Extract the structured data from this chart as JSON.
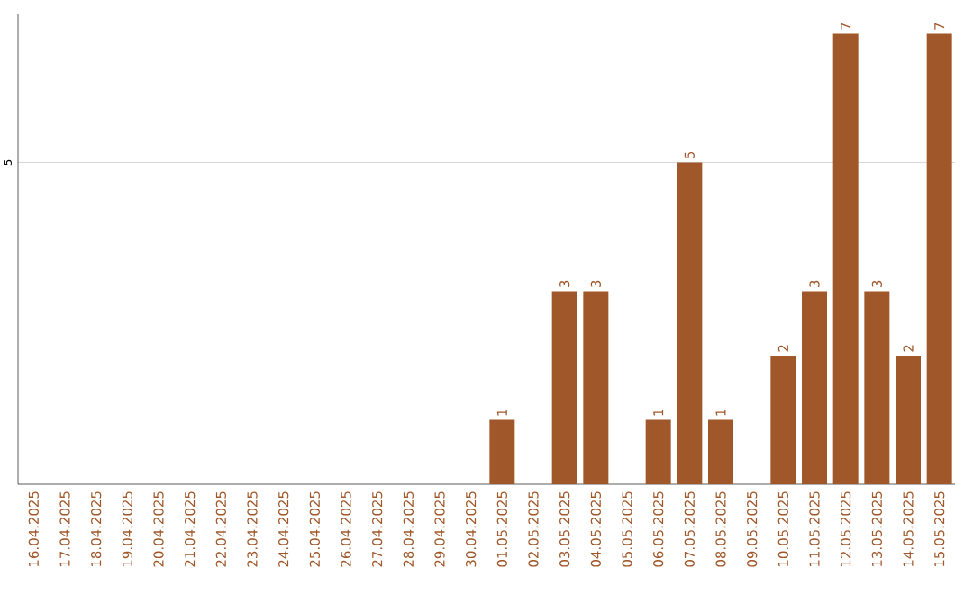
{
  "chart_data": {
    "type": "bar",
    "categories": [
      "16.04.2025",
      "17.04.2025",
      "18.04.2025",
      "19.04.2025",
      "20.04.2025",
      "21.04.2025",
      "22.04.2025",
      "23.04.2025",
      "24.04.2025",
      "25.04.2025",
      "26.04.2025",
      "27.04.2025",
      "28.04.2025",
      "29.04.2025",
      "30.04.2025",
      "01.05.2025",
      "02.05.2025",
      "03.05.2025",
      "04.05.2025",
      "05.05.2025",
      "06.05.2025",
      "07.05.2025",
      "08.05.2025",
      "09.05.2025",
      "10.05.2025",
      "11.05.2025",
      "12.05.2025",
      "13.05.2025",
      "14.05.2025",
      "15.05.2025"
    ],
    "values": [
      null,
      null,
      null,
      null,
      null,
      null,
      null,
      null,
      null,
      null,
      null,
      null,
      null,
      null,
      null,
      1,
      null,
      3,
      3,
      null,
      1,
      5,
      1,
      null,
      2,
      3,
      7,
      3,
      2,
      7
    ],
    "value_labels": [
      null,
      null,
      null,
      null,
      null,
      null,
      null,
      null,
      null,
      null,
      null,
      null,
      null,
      null,
      null,
      "1",
      null,
      "3",
      "3",
      null,
      "1",
      "5",
      "1",
      null,
      "2",
      "3",
      "7",
      "3",
      "2",
      "7"
    ],
    "color": "#a0582a",
    "ylim": [
      0,
      7.3
    ],
    "yticks": [
      5
    ],
    "grid": "y"
  }
}
